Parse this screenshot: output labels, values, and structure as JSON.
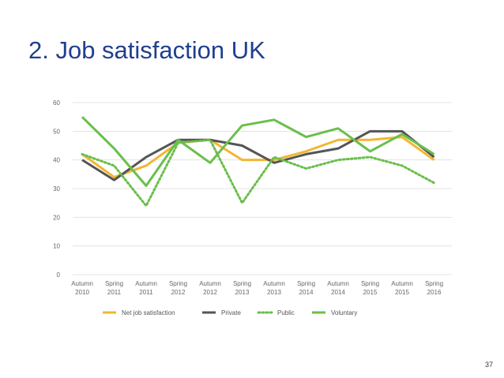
{
  "slide": {
    "title": "2.  Job satisfaction UK",
    "page_number": "37"
  },
  "chart_data": {
    "type": "line",
    "title": "2.  Job satisfaction UK",
    "xlabel": "",
    "ylabel": "",
    "ylim": [
      0,
      60
    ],
    "yticks": [
      0,
      10,
      20,
      30,
      40,
      50,
      60
    ],
    "grid": true,
    "legend": "bottom",
    "categories": [
      [
        "Autumn",
        "2010"
      ],
      [
        "Spring",
        "2011"
      ],
      [
        "Autumn",
        "2011"
      ],
      [
        "Spring",
        "2012"
      ],
      [
        "Autumn",
        "2012"
      ],
      [
        "Spring",
        "2013"
      ],
      [
        "Autumn",
        "2013"
      ],
      [
        "Spring",
        "2014"
      ],
      [
        "Autumn",
        "2014"
      ],
      [
        "Spring",
        "2015"
      ],
      [
        "Autumn",
        "2015"
      ],
      [
        "Spring",
        "2016"
      ]
    ],
    "series": [
      {
        "name": "Net job satisfaction",
        "color": "#f2b630",
        "dash": "solid",
        "values": [
          42,
          34,
          38,
          46,
          47,
          40,
          40,
          43,
          47,
          47,
          48,
          40
        ]
      },
      {
        "name": "Private",
        "color": "#555555",
        "dash": "solid",
        "values": [
          40,
          33,
          41,
          47,
          47,
          45,
          39,
          42,
          44,
          50,
          50,
          41
        ]
      },
      {
        "name": "Public",
        "color": "#6abf4b",
        "dash": "dotted",
        "values": [
          42,
          38,
          24,
          46,
          47,
          25,
          41,
          37,
          40,
          41,
          38,
          32
        ]
      },
      {
        "name": "Voluntary",
        "color": "#6abf4b",
        "dash": "solid",
        "values": [
          55,
          44,
          31,
          47,
          39,
          52,
          54,
          48,
          51,
          43,
          49,
          42
        ]
      }
    ]
  }
}
